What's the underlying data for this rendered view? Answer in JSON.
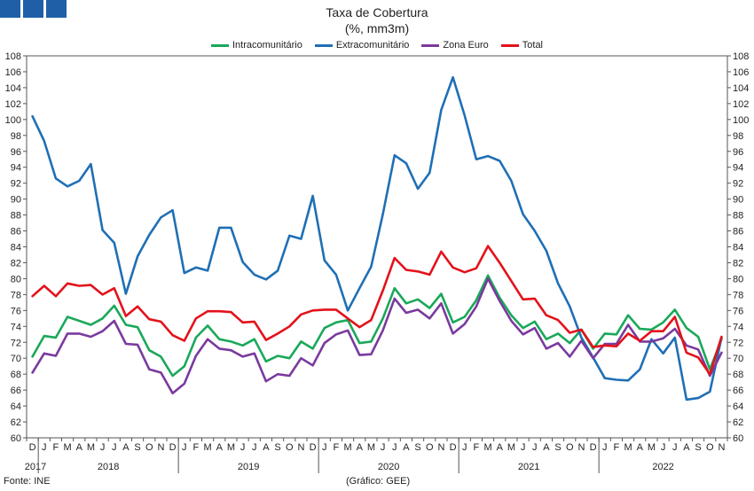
{
  "title": "Taxa de Cobertura",
  "subtitle": "(%, mm3m)",
  "source": "Fonte: INE",
  "credit": "(Gráfico: GEE)",
  "colors": {
    "brand": "#1e5fa8"
  },
  "chart_data": {
    "type": "line",
    "title": "Taxa de Cobertura",
    "subtitle": "(%, mm3m)",
    "ylim": [
      60,
      108
    ],
    "ytick_step": 2,
    "grid": false,
    "legend_position": "top-center",
    "x": [
      "D",
      "J",
      "F",
      "M",
      "A",
      "M",
      "J",
      "J",
      "A",
      "S",
      "O",
      "N",
      "D",
      "J",
      "F",
      "M",
      "A",
      "M",
      "J",
      "J",
      "A",
      "S",
      "O",
      "N",
      "D",
      "J",
      "F",
      "M",
      "A",
      "M",
      "J",
      "J",
      "A",
      "S",
      "O",
      "N",
      "D",
      "J",
      "F",
      "M",
      "A",
      "M",
      "J",
      "J",
      "A",
      "S",
      "O",
      "N",
      "D",
      "J",
      "F",
      "M",
      "A",
      "M",
      "J",
      "J",
      "A",
      "S",
      "O",
      "N"
    ],
    "years": [
      {
        "label": "2017",
        "start": 0,
        "end": 0
      },
      {
        "label": "2018",
        "start": 1,
        "end": 12
      },
      {
        "label": "2019",
        "start": 13,
        "end": 24
      },
      {
        "label": "2020",
        "start": 25,
        "end": 36
      },
      {
        "label": "2021",
        "start": 37,
        "end": 48
      },
      {
        "label": "2022",
        "start": 49,
        "end": 59
      }
    ],
    "series": [
      {
        "name": "Intracomunitário",
        "color": "#1aa85a",
        "values": [
          70.2,
          72.8,
          72.6,
          75.2,
          74.7,
          74.2,
          75.0,
          76.6,
          74.2,
          73.9,
          71.0,
          70.2,
          67.8,
          69.0,
          72.6,
          74.1,
          72.4,
          72.1,
          71.6,
          72.4,
          69.6,
          70.3,
          70.0,
          72.1,
          71.2,
          73.8,
          74.5,
          74.8,
          71.9,
          72.1,
          75.0,
          78.8,
          76.9,
          77.4,
          76.3,
          78.1,
          74.5,
          75.2,
          77.3,
          80.4,
          77.6,
          75.4,
          73.8,
          74.6,
          72.4,
          73.1,
          71.9,
          73.6,
          71.2,
          73.1,
          73.0,
          75.4,
          73.7,
          73.6,
          74.5,
          76.1,
          73.8,
          72.7,
          68.6,
          72.4
        ]
      },
      {
        "name": "Extracomunitário",
        "color": "#1f6fb5",
        "values": [
          100.4,
          97.3,
          92.6,
          91.6,
          92.3,
          94.4,
          86.1,
          84.5,
          78.1,
          82.8,
          85.5,
          87.7,
          88.6,
          80.7,
          81.4,
          81.0,
          86.4,
          86.4,
          82.1,
          80.5,
          79.9,
          81.0,
          85.4,
          85.0,
          90.4,
          82.3,
          80.5,
          76.0,
          78.8,
          81.5,
          88.1,
          95.5,
          94.5,
          91.3,
          93.3,
          101.2,
          105.3,
          100.5,
          95.0,
          95.4,
          94.8,
          92.3,
          88.1,
          86.0,
          83.5,
          79.4,
          76.5,
          72.6,
          70.1,
          67.5,
          67.3,
          67.2,
          68.6,
          72.4,
          70.6,
          72.6,
          64.8,
          65.0,
          65.8,
          72.6
        ]
      },
      {
        "name": "Zona Euro",
        "color": "#7a3a9e",
        "values": [
          68.2,
          70.6,
          70.3,
          73.1,
          73.1,
          72.7,
          73.4,
          74.7,
          71.8,
          71.7,
          68.6,
          68.2,
          65.6,
          66.8,
          70.3,
          72.4,
          71.2,
          71.0,
          70.2,
          70.6,
          67.1,
          68.0,
          67.8,
          70.0,
          69.1,
          71.9,
          73.0,
          73.5,
          70.4,
          70.5,
          73.5,
          77.5,
          75.7,
          76.1,
          75.0,
          76.9,
          73.1,
          74.3,
          76.5,
          80.0,
          77.2,
          74.7,
          73.0,
          73.8,
          71.2,
          71.9,
          70.2,
          72.2,
          70.0,
          71.8,
          71.8,
          74.2,
          72.1,
          72.1,
          72.5,
          73.7,
          71.6,
          71.1,
          67.8,
          70.7
        ]
      },
      {
        "name": "Total",
        "color": "#e3121b",
        "values": [
          77.8,
          79.1,
          77.8,
          79.4,
          79.1,
          79.2,
          78.0,
          78.8,
          75.3,
          76.5,
          74.9,
          74.6,
          72.9,
          72.2,
          75.0,
          75.9,
          75.9,
          75.8,
          74.5,
          74.6,
          72.3,
          73.1,
          74.0,
          75.5,
          76.0,
          76.1,
          76.1,
          75.0,
          73.9,
          74.8,
          78.5,
          82.6,
          81.1,
          80.9,
          80.5,
          83.4,
          81.4,
          80.8,
          81.3,
          84.1,
          82.0,
          79.7,
          77.4,
          77.5,
          75.4,
          74.8,
          73.2,
          73.6,
          71.4,
          71.6,
          71.5,
          73.1,
          72.2,
          73.4,
          73.4,
          75.2,
          70.7,
          70.1,
          68.0,
          72.7
        ]
      }
    ]
  }
}
